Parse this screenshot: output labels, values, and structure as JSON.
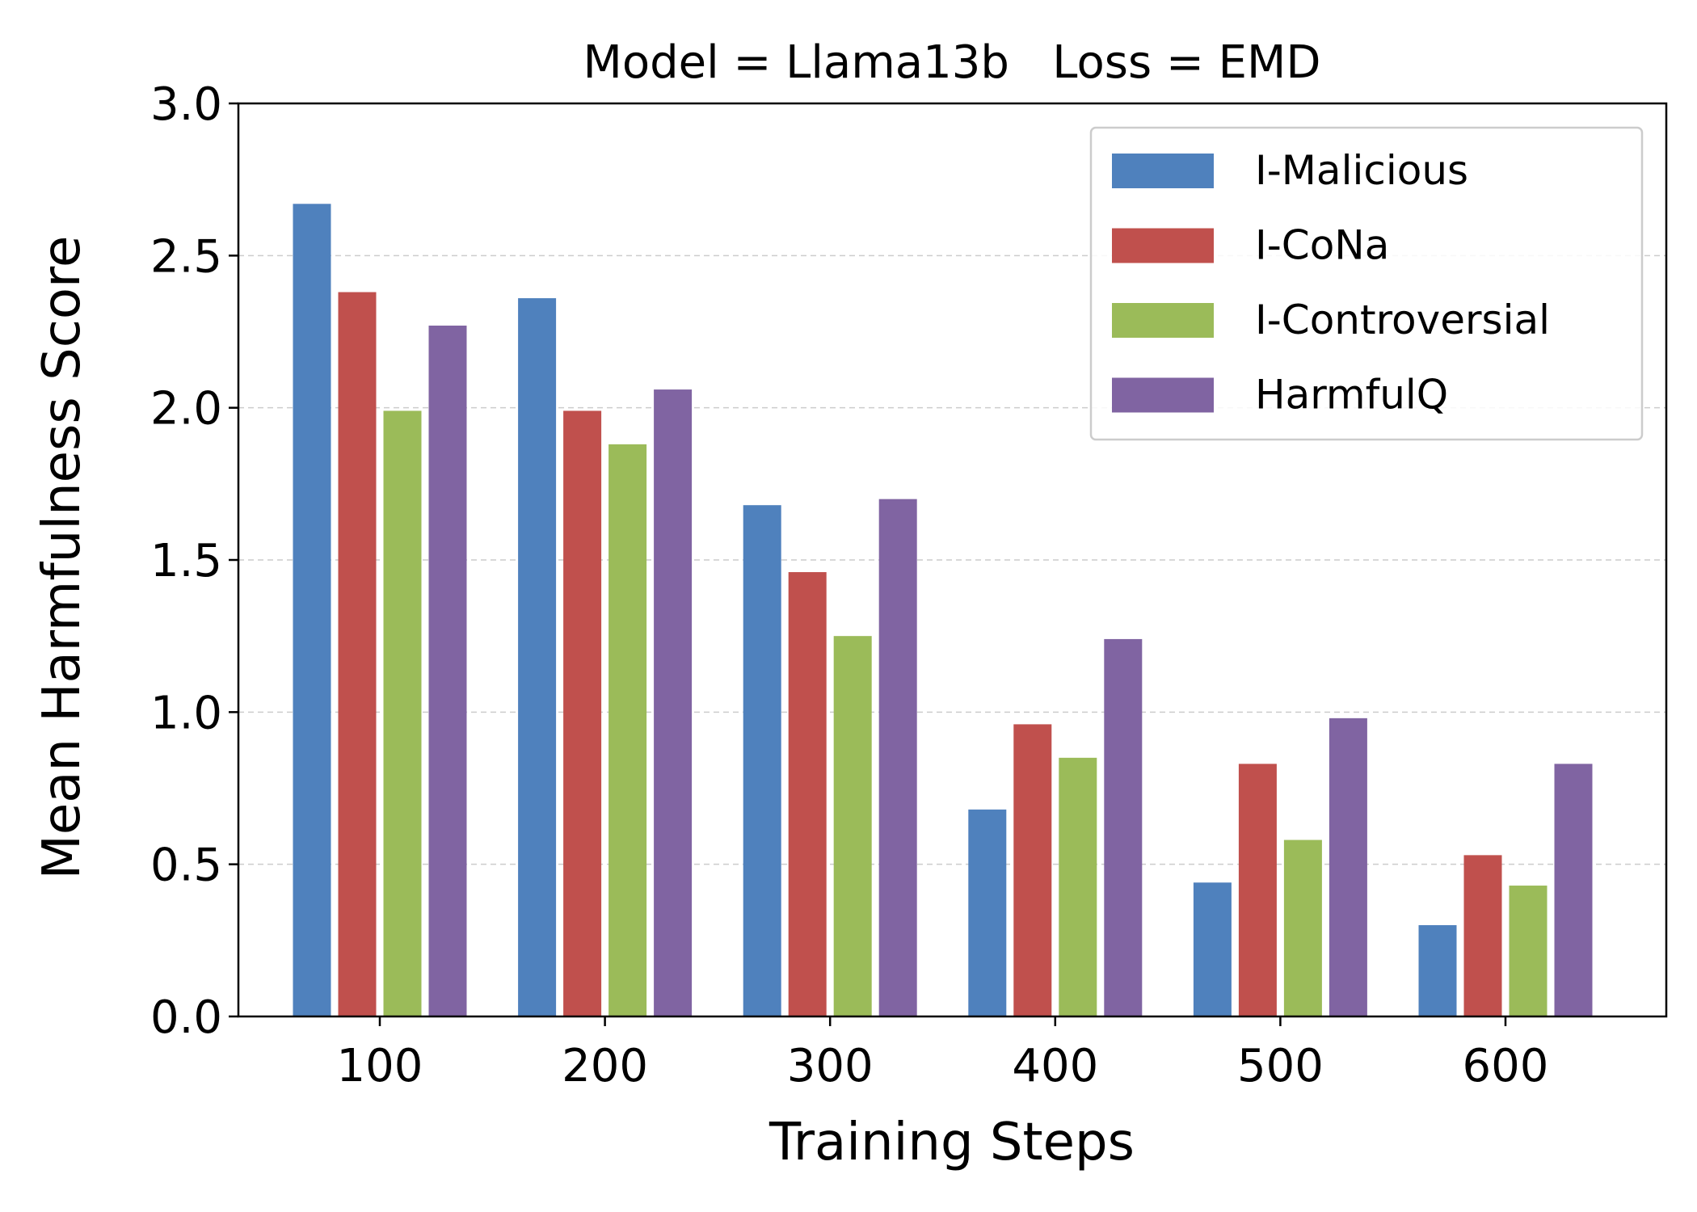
{
  "chart_data": {
    "type": "bar",
    "title": "Model = Llama13b   Loss = EMD",
    "xlabel": "Training Steps",
    "ylabel": "Mean Harmfulness Score",
    "categories": [
      "100",
      "200",
      "300",
      "400",
      "500",
      "600"
    ],
    "ylim": [
      0,
      3.0
    ],
    "yticks": [
      "0.0",
      "0.5",
      "1.0",
      "1.5",
      "2.0",
      "2.5",
      "3.0"
    ],
    "grid": true,
    "legend_position": "top-right",
    "series": [
      {
        "name": "I-Malicious",
        "color": "#4f81bd",
        "values": [
          2.67,
          2.36,
          1.68,
          0.68,
          0.44,
          0.3
        ]
      },
      {
        "name": "I-CoNa",
        "color": "#c0504d",
        "values": [
          2.38,
          1.99,
          1.46,
          0.96,
          0.83,
          0.53
        ]
      },
      {
        "name": "I-Controversial",
        "color": "#9bbb59",
        "values": [
          1.99,
          1.88,
          1.25,
          0.85,
          0.58,
          0.43
        ]
      },
      {
        "name": "HarmfulQ",
        "color": "#8064a2",
        "values": [
          2.27,
          2.06,
          1.7,
          1.24,
          0.98,
          0.83
        ]
      }
    ]
  }
}
